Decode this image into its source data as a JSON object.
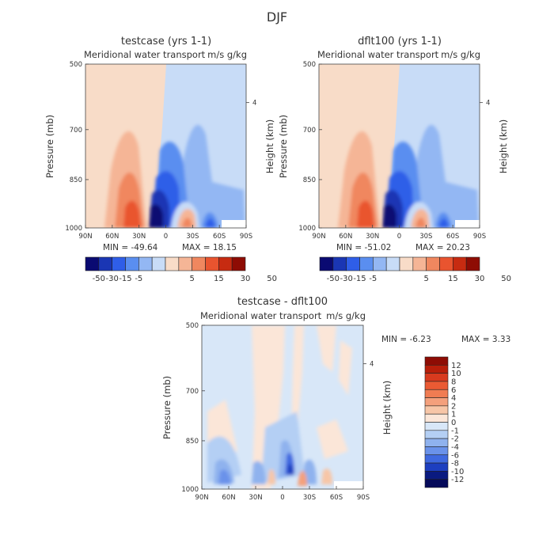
{
  "figure_title": "DJF",
  "chart_data": [
    {
      "type": "heatmap",
      "title": "testcase (yrs 1-1)",
      "subtitle_left": "Meridional water transport",
      "subtitle_right": "m/s g/kg",
      "ylabel": "Pressure (mb)",
      "ylabel_right": "Height (km)",
      "x_ticks": [
        "90N",
        "60N",
        "30N",
        "0",
        "30S",
        "60S",
        "90S"
      ],
      "y_ticks": [
        "500",
        "700",
        "850",
        "1000"
      ],
      "right_ticks": [
        "4"
      ],
      "min_label": "MIN =  -49.64",
      "max_label": "MAX =   18.15",
      "features": [
        {
          "lat": -5,
          "p": 950,
          "value": -45
        },
        {
          "lat": -12,
          "p": 900,
          "value": -20
        },
        {
          "lat": -22,
          "p": 800,
          "value": -10
        },
        {
          "lat": 37,
          "p": 960,
          "value": 17
        },
        {
          "lat": 50,
          "p": 940,
          "value": 18
        },
        {
          "lat": -40,
          "p": 960,
          "value": 10
        },
        {
          "lat": -58,
          "p": 990,
          "value": -25
        }
      ]
    },
    {
      "type": "heatmap",
      "title": "dflt100 (yrs 1-1)",
      "subtitle_left": "Meridional water transport",
      "subtitle_right": "m/s g/kg",
      "ylabel": "Pressure (mb)",
      "ylabel_right": "Height (km)",
      "x_ticks": [
        "90N",
        "60N",
        "30N",
        "0",
        "30S",
        "60S",
        "90S"
      ],
      "y_ticks": [
        "500",
        "700",
        "850",
        "1000"
      ],
      "right_ticks": [
        "4"
      ],
      "min_label": "MIN =  -51.02",
      "max_label": "MAX =   20.23",
      "features": [
        {
          "lat": -5,
          "p": 950,
          "value": -48
        },
        {
          "lat": -12,
          "p": 900,
          "value": -20
        },
        {
          "lat": -22,
          "p": 800,
          "value": -10
        },
        {
          "lat": 37,
          "p": 960,
          "value": 20
        },
        {
          "lat": 50,
          "p": 940,
          "value": 18
        },
        {
          "lat": -40,
          "p": 960,
          "value": 10
        },
        {
          "lat": -58,
          "p": 990,
          "value": -25
        }
      ]
    },
    {
      "type": "heatmap",
      "title": "testcase - dflt100",
      "subtitle_left": "Meridional water transport",
      "subtitle_right": "m/s g/kg",
      "ylabel": "Pressure (mb)",
      "ylabel_right": "Height (km)",
      "x_ticks": [
        "90N",
        "60N",
        "30N",
        "0",
        "30S",
        "60S",
        "90S"
      ],
      "y_ticks": [
        "500",
        "700",
        "850",
        "1000"
      ],
      "right_ticks": [
        "4"
      ],
      "min_label": "MIN =   -6.23",
      "max_label": "MAX =    3.33",
      "features": [
        {
          "lat": 0,
          "p": 960,
          "value": -6
        },
        {
          "lat": 60,
          "p": 960,
          "value": -4
        },
        {
          "lat": -40,
          "p": 960,
          "value": -3
        },
        {
          "lat": 10,
          "p": 940,
          "value": 3
        }
      ]
    }
  ],
  "colorbars": [
    {
      "orientation": "horizontal",
      "labels": [
        "-50",
        "-30",
        "-15",
        "-5",
        "5",
        "15",
        "30",
        "50"
      ],
      "colors": [
        "#0a0a72",
        "#1a36b4",
        "#2f5ee8",
        "#5a8ef0",
        "#93b7f3",
        "#c8dcf7",
        "#f8dcc8",
        "#f5b596",
        "#f0875f",
        "#e9542f",
        "#c72b11",
        "#8e0c04"
      ]
    },
    {
      "orientation": "vertical",
      "labels": [
        "12",
        "10",
        "8",
        "6",
        "4",
        "2",
        "1",
        "0",
        "-1",
        "-2",
        "-4",
        "-6",
        "-8",
        "-10",
        "-12"
      ],
      "colors": [
        "#8e0c04",
        "#b81e0a",
        "#d83a1e",
        "#ea5a33",
        "#f07c52",
        "#f4a07c",
        "#f7c6a7",
        "#fbe6d8",
        "#d8e7f8",
        "#b4cff4",
        "#8fb2ee",
        "#6a92ea",
        "#3f69e0",
        "#1d3fc0",
        "#0a1a80",
        "#050a5a"
      ]
    }
  ]
}
